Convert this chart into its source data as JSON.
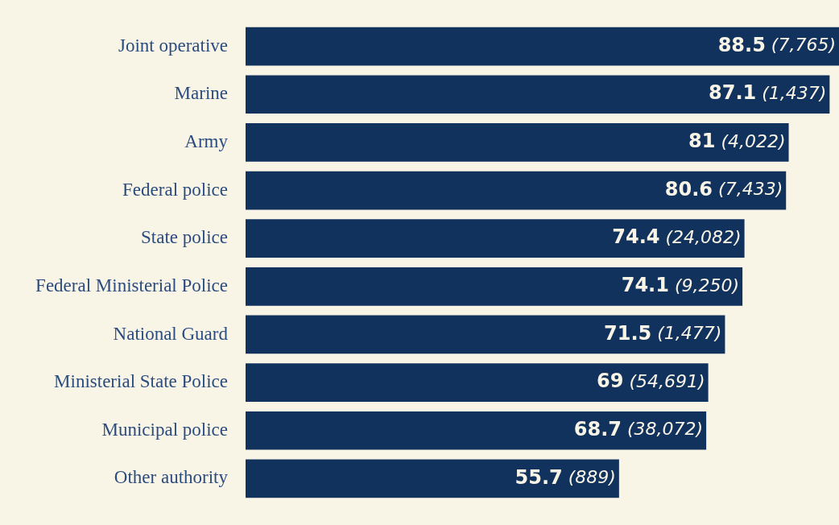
{
  "chart_data": {
    "type": "bar",
    "orientation": "horizontal",
    "categories": [
      "Joint operative",
      "Marine",
      "Army",
      "Federal police",
      "State police",
      "Federal Ministerial Police",
      "National Guard",
      "Ministerial State Police",
      "Municipal police",
      "Other authority"
    ],
    "values": [
      88.5,
      87.1,
      81,
      80.6,
      74.4,
      74.1,
      71.5,
      69,
      68.7,
      55.7
    ],
    "color": "#12325e",
    "value_labels": [
      "88.5 (7,765)",
      "87.1 (1,437)",
      "81 (4,022)",
      "80.6 (7,433)",
      "74.4 (24,082)",
      "74.1 (9,250)",
      "71.5 (1,477)",
      "69 (54,691)",
      "68.7 (38,072)",
      "55.7 (889)"
    ]
  }
}
